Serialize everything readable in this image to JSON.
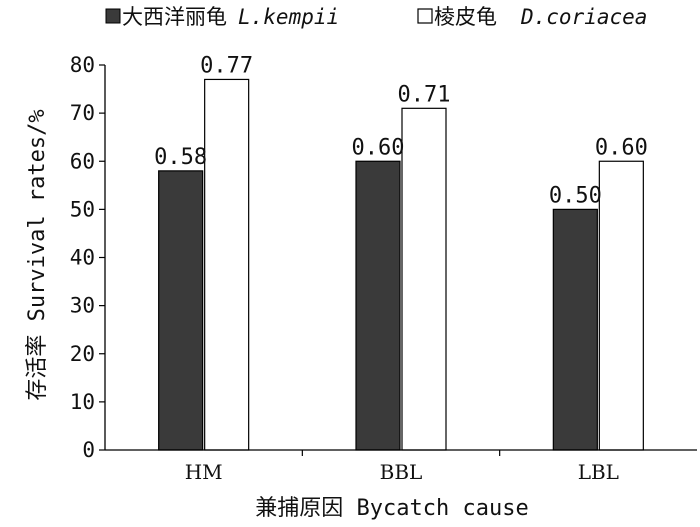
{
  "chart_data": {
    "type": "bar",
    "categories": [
      "HM",
      "BBL",
      "LBL"
    ],
    "series": [
      {
        "name_cn": "大西洋丽龟",
        "name_latin": "L.kempii",
        "values": [
          58,
          60,
          50
        ],
        "data_labels": [
          "0.58",
          "0.60",
          "0.50"
        ],
        "color": "#3a3a3a"
      },
      {
        "name_cn": "棱皮龟",
        "name_latin": "D.coriacea",
        "values": [
          77,
          71,
          60
        ],
        "data_labels": [
          "0.77",
          "0.71",
          "0.60"
        ],
        "color": "#ffffff"
      }
    ],
    "xlabel": "兼捕原因 Bycatch cause",
    "ylabel": "存活率 Survival rates/%",
    "ylim": [
      0,
      80
    ],
    "yticks": [
      0,
      10,
      20,
      30,
      40,
      50,
      60,
      70,
      80
    ],
    "grid": false,
    "legend_position": "top"
  }
}
